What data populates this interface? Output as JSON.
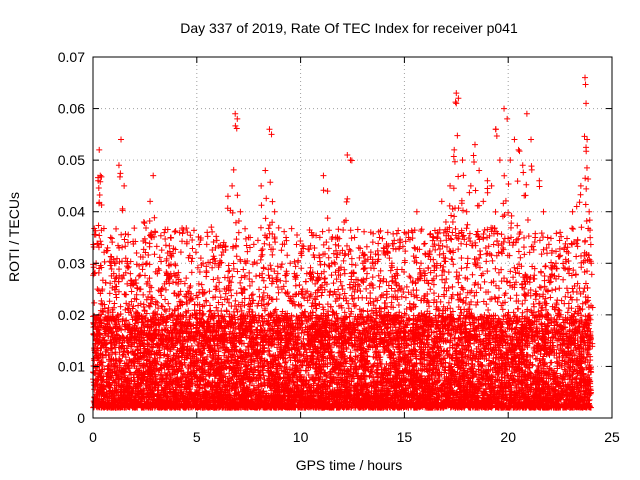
{
  "chart_data": {
    "type": "scatter",
    "title": "Day 337 of 2019, Rate Of TEC Index for receiver p041",
    "xlabel": "GPS time / hours",
    "ylabel": "ROTI / TECUs",
    "xlim": [
      0,
      25
    ],
    "ylim": [
      0,
      0.07
    ],
    "xticks": [
      0,
      5,
      10,
      15,
      20,
      25
    ],
    "xtick_labels": [
      "0",
      "5",
      "10",
      "15",
      "20",
      "25"
    ],
    "yticks": [
      0,
      0.01,
      0.02,
      0.03,
      0.04,
      0.05,
      0.06,
      0.07
    ],
    "ytick_labels": [
      "0",
      "0.01",
      "0.02",
      "0.03",
      "0.04",
      "0.05",
      "0.06",
      "0.07"
    ],
    "grid": true,
    "marker": "+",
    "color": "#ff0000",
    "series": [
      {
        "name": "ROTI",
        "x": [
          0.05,
          0.15,
          0.25,
          0.3,
          0.35,
          0.45,
          0.55,
          0.7,
          0.85,
          1.0,
          1.1,
          1.25,
          1.35,
          1.5,
          1.65,
          1.8,
          1.95,
          2.1,
          2.3,
          2.45,
          2.6,
          2.75,
          2.9,
          3.0,
          3.1,
          3.3,
          3.45,
          3.6,
          3.75,
          3.9,
          4.1,
          4.3,
          4.5,
          4.7,
          4.9,
          5.1,
          5.3,
          5.5,
          5.7,
          5.9,
          6.1,
          6.3,
          6.5,
          6.7,
          6.85,
          6.95,
          7.1,
          7.3,
          7.5,
          7.7,
          7.9,
          8.1,
          8.3,
          8.5,
          8.6,
          8.75,
          8.9,
          9.1,
          9.3,
          9.5,
          9.7,
          9.9,
          10.1,
          10.3,
          10.5,
          10.7,
          10.9,
          11.0,
          11.1,
          11.3,
          11.5,
          11.7,
          11.9,
          12.1,
          12.25,
          12.4,
          12.6,
          12.8,
          13.0,
          13.2,
          13.4,
          13.6,
          13.8,
          14.0,
          14.2,
          14.4,
          14.6,
          14.8,
          15.0,
          15.2,
          15.4,
          15.6,
          15.8,
          16.0,
          16.2,
          16.4,
          16.6,
          16.8,
          17.0,
          17.2,
          17.4,
          17.5,
          17.6,
          17.8,
          18.0,
          18.2,
          18.4,
          18.6,
          18.8,
          19.0,
          19.2,
          19.4,
          19.6,
          19.8,
          19.95,
          20.1,
          20.3,
          20.5,
          20.7,
          20.9,
          21.1,
          21.3,
          21.5,
          21.7,
          21.9,
          22.1,
          22.3,
          22.5,
          22.7,
          22.9,
          23.1,
          23.3,
          23.5,
          23.7,
          23.75,
          23.8,
          23.9,
          24.0
        ],
        "y": [
          0.028,
          0.03,
          0.046,
          0.052,
          0.047,
          0.025,
          0.022,
          0.033,
          0.035,
          0.028,
          0.03,
          0.049,
          0.054,
          0.045,
          0.03,
          0.028,
          0.026,
          0.032,
          0.025,
          0.038,
          0.03,
          0.042,
          0.047,
          0.036,
          0.028,
          0.025,
          0.026,
          0.032,
          0.035,
          0.028,
          0.026,
          0.022,
          0.024,
          0.023,
          0.022,
          0.026,
          0.03,
          0.036,
          0.037,
          0.033,
          0.03,
          0.034,
          0.043,
          0.045,
          0.059,
          0.058,
          0.04,
          0.025,
          0.022,
          0.024,
          0.03,
          0.045,
          0.048,
          0.056,
          0.055,
          0.04,
          0.028,
          0.025,
          0.035,
          0.03,
          0.028,
          0.022,
          0.025,
          0.028,
          0.024,
          0.026,
          0.022,
          0.028,
          0.047,
          0.044,
          0.03,
          0.024,
          0.032,
          0.038,
          0.051,
          0.05,
          0.035,
          0.033,
          0.03,
          0.028,
          0.026,
          0.03,
          0.035,
          0.033,
          0.036,
          0.03,
          0.028,
          0.034,
          0.036,
          0.035,
          0.036,
          0.04,
          0.03,
          0.028,
          0.032,
          0.035,
          0.036,
          0.042,
          0.038,
          0.045,
          0.052,
          0.063,
          0.062,
          0.05,
          0.04,
          0.045,
          0.053,
          0.048,
          0.042,
          0.046,
          0.045,
          0.056,
          0.05,
          0.06,
          0.058,
          0.05,
          0.054,
          0.052,
          0.049,
          0.059,
          0.054,
          0.035,
          0.046,
          0.04,
          0.035,
          0.032,
          0.03,
          0.036,
          0.033,
          0.032,
          0.04,
          0.041,
          0.045,
          0.066,
          0.061,
          0.054,
          0.04,
          0.03
        ]
      }
    ],
    "dense_band": {
      "x_range": [
        0,
        24
      ],
      "y_range": [
        0.002,
        0.02
      ],
      "approx_count": 9000
    }
  }
}
